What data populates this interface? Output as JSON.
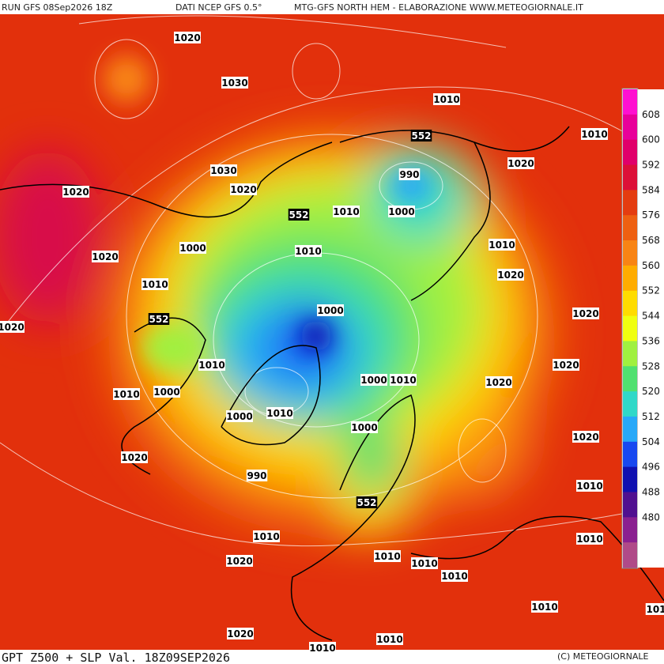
{
  "header": {
    "run": "RUN GFS 08Sep2026 18Z",
    "source": "DATI NCEP GFS 0.5°",
    "credit": "MTG-GFS NORTH HEM - ELABORAZIONE WWW.METEOGIORNALE.IT"
  },
  "footer": {
    "title": "GPT Z500 + SLP Val. 18Z09SEP2026",
    "copyright": "(C) METEOGIORNALE"
  },
  "colorbar": {
    "labels": [
      608,
      600,
      592,
      584,
      576,
      568,
      560,
      552,
      544,
      536,
      528,
      520,
      512,
      504,
      496,
      488,
      480
    ],
    "colors": [
      "#ff10d0",
      "#e8009a",
      "#e0006a",
      "#dc1038",
      "#e43c10",
      "#ee6012",
      "#f88414",
      "#ffac00",
      "#ffdc00",
      "#f0ff10",
      "#a0f040",
      "#50e070",
      "#30d8c8",
      "#28a8f8",
      "#1848f0",
      "#1010b0",
      "#501090",
      "#8a2090",
      "#b04a88"
    ]
  },
  "map": {
    "labels": [
      "1020",
      "1030",
      "1010",
      "552",
      "1010",
      "1030",
      "990",
      "1020",
      "1020",
      "1020",
      "552",
      "1010",
      "1000",
      "1000",
      "1010",
      "1010",
      "1020",
      "1020",
      "1010",
      "1000",
      "552",
      "1020",
      "1020",
      "1010",
      "1020",
      "1000",
      "1010",
      "1020",
      "1010",
      "1000",
      "1000",
      "1010",
      "1000",
      "1020",
      "1020",
      "990",
      "1010",
      "552",
      "1010",
      "1010",
      "1020",
      "1010",
      "1010",
      "1010",
      "1010",
      "101",
      "1020",
      "1010",
      "1010"
    ]
  }
}
